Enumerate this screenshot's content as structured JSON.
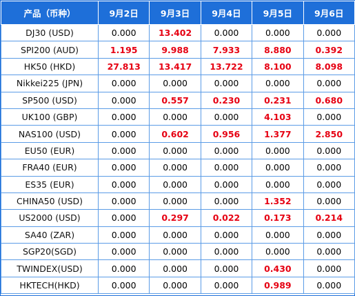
{
  "colors": {
    "header_bg": "#1e6fd9",
    "header_text": "#ffffff",
    "grid_line": "#5a9be6",
    "highlight_text": "#e60012"
  },
  "table": {
    "headers": [
      "产品（币种）",
      "9月2日",
      "9月3日",
      "9月4日",
      "9月5日",
      "9月6日"
    ],
    "rows": [
      {
        "product": "DJ30 (USD)",
        "values": [
          "0.000",
          "13.402",
          "0.000",
          "0.000",
          "0.000"
        ],
        "highlight": [
          false,
          true,
          false,
          false,
          false
        ]
      },
      {
        "product": "SPI200 (AUD)",
        "values": [
          "1.195",
          "9.988",
          "7.933",
          "8.880",
          "0.392"
        ],
        "highlight": [
          true,
          true,
          true,
          true,
          true
        ]
      },
      {
        "product": "HK50 (HKD)",
        "values": [
          "27.813",
          "13.417",
          "13.722",
          "8.100",
          "8.098"
        ],
        "highlight": [
          true,
          true,
          true,
          true,
          true
        ]
      },
      {
        "product": "Nikkei225 (JPN)",
        "values": [
          "0.000",
          "0.000",
          "0.000",
          "0.000",
          "0.000"
        ],
        "highlight": [
          false,
          false,
          false,
          false,
          false
        ]
      },
      {
        "product": "SP500 (USD)",
        "values": [
          "0.000",
          "0.557",
          "0.230",
          "0.231",
          "0.680"
        ],
        "highlight": [
          false,
          true,
          true,
          true,
          true
        ]
      },
      {
        "product": "UK100 (GBP)",
        "values": [
          "0.000",
          "0.000",
          "0.000",
          "4.103",
          "0.000"
        ],
        "highlight": [
          false,
          false,
          false,
          true,
          false
        ]
      },
      {
        "product": "NAS100 (USD)",
        "values": [
          "0.000",
          "0.602",
          "0.956",
          "1.377",
          "2.850"
        ],
        "highlight": [
          false,
          true,
          true,
          true,
          true
        ]
      },
      {
        "product": "EU50 (EUR)",
        "values": [
          "0.000",
          "0.000",
          "0.000",
          "0.000",
          "0.000"
        ],
        "highlight": [
          false,
          false,
          false,
          false,
          false
        ]
      },
      {
        "product": "FRA40 (EUR)",
        "values": [
          "0.000",
          "0.000",
          "0.000",
          "0.000",
          "0.000"
        ],
        "highlight": [
          false,
          false,
          false,
          false,
          false
        ]
      },
      {
        "product": "ES35 (EUR)",
        "values": [
          "0.000",
          "0.000",
          "0.000",
          "0.000",
          "0.000"
        ],
        "highlight": [
          false,
          false,
          false,
          false,
          false
        ]
      },
      {
        "product": "CHINA50 (USD)",
        "values": [
          "0.000",
          "0.000",
          "0.000",
          "1.352",
          "0.000"
        ],
        "highlight": [
          false,
          false,
          false,
          true,
          false
        ]
      },
      {
        "product": "US2000 (USD)",
        "values": [
          "0.000",
          "0.297",
          "0.022",
          "0.173",
          "0.214"
        ],
        "highlight": [
          false,
          true,
          true,
          true,
          true
        ]
      },
      {
        "product": "SA40 (ZAR)",
        "values": [
          "0.000",
          "0.000",
          "0.000",
          "0.000",
          "0.000"
        ],
        "highlight": [
          false,
          false,
          false,
          false,
          false
        ]
      },
      {
        "product": "SGP20(SGD)",
        "values": [
          "0.000",
          "0.000",
          "0.000",
          "0.000",
          "0.000"
        ],
        "highlight": [
          false,
          false,
          false,
          false,
          false
        ]
      },
      {
        "product": "TWINDEX(USD)",
        "values": [
          "0.000",
          "0.000",
          "0.000",
          "0.430",
          "0.000"
        ],
        "highlight": [
          false,
          false,
          false,
          true,
          false
        ]
      },
      {
        "product": "HKTECH(HKD)",
        "values": [
          "0.000",
          "0.000",
          "0.000",
          "0.989",
          "0.000"
        ],
        "highlight": [
          false,
          false,
          false,
          true,
          false
        ]
      }
    ]
  }
}
